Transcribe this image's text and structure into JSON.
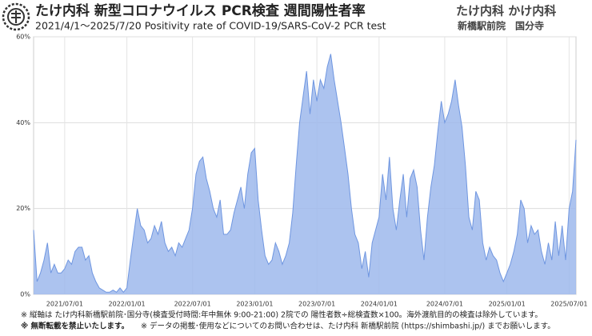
{
  "header": {
    "title": "たけ内科 新型コロナウイルス PCR検査 週間陽性者率",
    "subtitle": "2021/4/1〜2025/7/20 Positivity rate of COVID-19/SARS-CoV-2 PCR test",
    "brand": "たけ内科 かけ内科",
    "clinics": "新橋駅前院　国分寺"
  },
  "chart_data": {
    "type": "area",
    "color": "#6f96e0",
    "fill": "#9db9ec",
    "categories": [
      null,
      null,
      null,
      null,
      null,
      null,
      null,
      null,
      null,
      "2021/07/01",
      null,
      null,
      null,
      null,
      null,
      null,
      null,
      null,
      null,
      null,
      null,
      null,
      null,
      null,
      null,
      null,
      null,
      "2022/01/01",
      null,
      null,
      null,
      null,
      null,
      null,
      null,
      null,
      null,
      null,
      null,
      null,
      null,
      null,
      null,
      null,
      null,
      null,
      "2022/07/01",
      null,
      null,
      null,
      null,
      null,
      null,
      null,
      null,
      null,
      null,
      null,
      null,
      null,
      null,
      null,
      null,
      null,
      "2023/01/01",
      null,
      null,
      null,
      null,
      null,
      null,
      null,
      null,
      null,
      null,
      null,
      null,
      null,
      null,
      null,
      null,
      null,
      "2023/07/01",
      null,
      null,
      null,
      null,
      null,
      null,
      null,
      null,
      null,
      null,
      null,
      null,
      null,
      null,
      null,
      null,
      null,
      "2024/01/01",
      null,
      null,
      null,
      null,
      null,
      null,
      null,
      null,
      null,
      null,
      null,
      null,
      null,
      null,
      null,
      null,
      null,
      null,
      "2024/07/01",
      null,
      null,
      null,
      null,
      null,
      null,
      null,
      null,
      null,
      null,
      null,
      null,
      null,
      null,
      null,
      null,
      null,
      "2025/01/01",
      null,
      null,
      null,
      null,
      null,
      null,
      null,
      null,
      null,
      null,
      null,
      null,
      null,
      null,
      null,
      null,
      null,
      "2025/07/01",
      null,
      null
    ],
    "values": [
      15,
      3,
      5,
      8,
      12,
      5,
      7,
      5,
      5,
      6,
      8,
      7,
      10,
      11,
      11,
      8,
      9,
      5,
      3,
      1.5,
      1,
      0.5,
      0.5,
      1,
      0.5,
      1.5,
      0.5,
      1.5,
      8,
      14,
      20,
      16,
      15,
      12,
      13,
      16,
      14,
      17,
      12,
      10,
      11,
      9,
      12,
      11,
      13,
      15,
      20,
      28,
      31,
      32,
      27,
      24,
      20,
      18,
      22,
      14,
      14,
      15,
      19,
      22,
      25,
      20,
      28,
      33,
      34,
      22,
      15,
      9,
      7,
      8,
      12,
      10,
      7,
      9,
      12,
      19,
      30,
      40,
      46,
      52,
      42,
      50,
      45,
      50,
      48,
      53,
      56,
      50,
      45,
      40,
      34,
      28,
      20,
      14,
      12,
      6,
      10,
      4,
      12,
      15,
      18,
      28,
      22,
      32,
      20,
      15,
      22,
      28,
      18,
      27,
      29,
      25,
      15,
      8,
      18,
      25,
      30,
      38,
      45,
      40,
      42,
      45,
      50,
      44,
      39,
      30,
      18,
      15,
      24,
      22,
      12,
      8,
      11,
      9,
      8,
      5,
      3,
      5,
      7,
      10,
      14,
      22,
      20,
      12,
      16,
      14,
      15,
      10,
      7,
      12,
      8,
      17,
      9,
      16,
      8,
      20,
      24,
      36
    ],
    "ylim": [
      0,
      60
    ],
    "yticks": [
      {
        "value": 0,
        "label": "0%"
      },
      {
        "value": 20,
        "label": "20%"
      },
      {
        "value": 40,
        "label": "40%"
      },
      {
        "value": 60,
        "label": "60%"
      }
    ],
    "grid": true
  },
  "notes": [
    "※ 縦軸は たけ内科新橋駅前院･国分寺(検査受付時間:年中無休 9:00-21:00) 2院での 陽性者数÷総検査数×100。海外渡航目的の検査は除外しています。",
    "※ 無断転載を禁止いたします。",
    "※ データの掲載･使用などについてのお問い合わせは、たけ内科 新橋駅前院 (https://shimbashi.jp/) までお願いします。"
  ]
}
